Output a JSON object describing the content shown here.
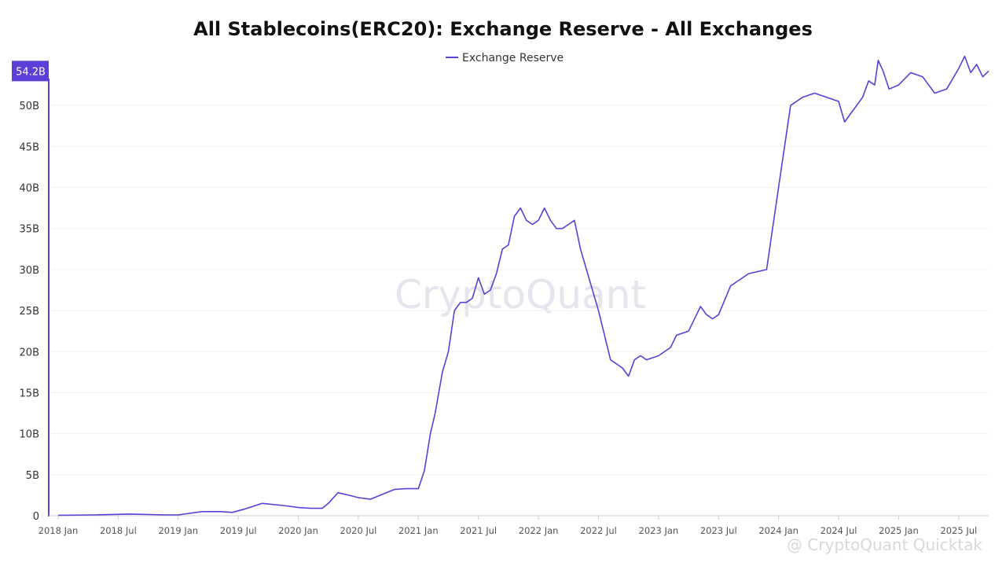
{
  "chart_data": {
    "type": "line",
    "title": "All Stablecoins(ERC20): Exchange Reserve - All Exchanges",
    "legend_position": "top-center",
    "grid": true,
    "ylim": [
      0,
      55
    ],
    "xlim": [
      2018.0,
      2025.75
    ],
    "ytick_values": [
      0,
      5,
      10,
      15,
      20,
      25,
      30,
      35,
      40,
      45,
      50
    ],
    "yticks": [
      "0",
      "5B",
      "10B",
      "15B",
      "20B",
      "25B",
      "30B",
      "35B",
      "40B",
      "45B",
      "50B"
    ],
    "xtick_values": [
      2018.0,
      2018.5,
      2019.0,
      2019.5,
      2020.0,
      2020.5,
      2021.0,
      2021.5,
      2022.0,
      2022.5,
      2023.0,
      2023.5,
      2024.0,
      2024.5,
      2025.0,
      2025.5
    ],
    "xticks": [
      "2018 Jan",
      "2018 Jul",
      "2019 Jan",
      "2019 Jul",
      "2020 Jan",
      "2020 Jul",
      "2021 Jan",
      "2021 Jul",
      "2022 Jan",
      "2022 Jul",
      "2023 Jan",
      "2023 Jul",
      "2024 Jan",
      "2024 Jul",
      "2025 Jan",
      "2025 Jul"
    ],
    "current_value": 54.2,
    "current_value_label": "54.2B",
    "series": [
      {
        "name": "Exchange Reserve",
        "color": "#5b3fd6",
        "x": [
          2018.0,
          2018.3,
          2018.6,
          2018.9,
          2019.0,
          2019.2,
          2019.35,
          2019.45,
          2019.55,
          2019.7,
          2019.9,
          2020.0,
          2020.1,
          2020.2,
          2020.25,
          2020.33,
          2020.42,
          2020.5,
          2020.6,
          2020.7,
          2020.8,
          2020.9,
          2021.0,
          2021.05,
          2021.1,
          2021.14,
          2021.2,
          2021.25,
          2021.3,
          2021.35,
          2021.4,
          2021.45,
          2021.5,
          2021.55,
          2021.6,
          2021.65,
          2021.7,
          2021.75,
          2021.8,
          2021.85,
          2021.9,
          2021.95,
          2022.0,
          2022.05,
          2022.1,
          2022.15,
          2022.2,
          2022.25,
          2022.3,
          2022.35,
          2022.4,
          2022.5,
          2022.6,
          2022.7,
          2022.75,
          2022.8,
          2022.85,
          2022.9,
          2023.0,
          2023.1,
          2023.15,
          2023.25,
          2023.35,
          2023.4,
          2023.45,
          2023.5,
          2023.6,
          2023.75,
          2023.9,
          2024.0,
          2024.1,
          2024.2,
          2024.3,
          2024.4,
          2024.5,
          2024.55,
          2024.6,
          2024.7,
          2024.75,
          2024.8,
          2024.83,
          2024.87,
          2024.92,
          2025.0,
          2025.1,
          2025.2,
          2025.3,
          2025.4,
          2025.5,
          2025.55,
          2025.6,
          2025.65,
          2025.7,
          2025.75
        ],
        "values": [
          0.05,
          0.1,
          0.2,
          0.1,
          0.1,
          0.5,
          0.5,
          0.4,
          0.8,
          1.5,
          1.2,
          1.0,
          0.9,
          0.9,
          1.5,
          2.8,
          2.5,
          2.2,
          2.0,
          2.6,
          3.2,
          3.3,
          3.3,
          5.5,
          10.0,
          12.5,
          17.5,
          20.0,
          25.0,
          26.0,
          26.0,
          26.5,
          29.0,
          27.0,
          27.5,
          29.5,
          32.5,
          33.0,
          36.5,
          37.5,
          36.0,
          35.5,
          36.0,
          37.5,
          36.0,
          35.0,
          35.0,
          35.5,
          36.0,
          32.5,
          30.0,
          25.0,
          19.0,
          18.0,
          17.0,
          19.0,
          19.5,
          19.0,
          19.5,
          20.5,
          22.0,
          22.5,
          25.5,
          24.5,
          24.0,
          24.5,
          28.0,
          29.5,
          30.0,
          40.0,
          50.0,
          51.0,
          51.5,
          51.0,
          50.5,
          48.0,
          49.0,
          51.0,
          53.0,
          52.5,
          55.5,
          54.2,
          52.0,
          52.5,
          54.0,
          53.5,
          51.5,
          52.0,
          54.5,
          56.0,
          54.0,
          55.0,
          53.5,
          54.2
        ]
      }
    ]
  },
  "watermark": "CryptoQuant",
  "footer_watermark": "@ CryptoQuant Quicktak"
}
